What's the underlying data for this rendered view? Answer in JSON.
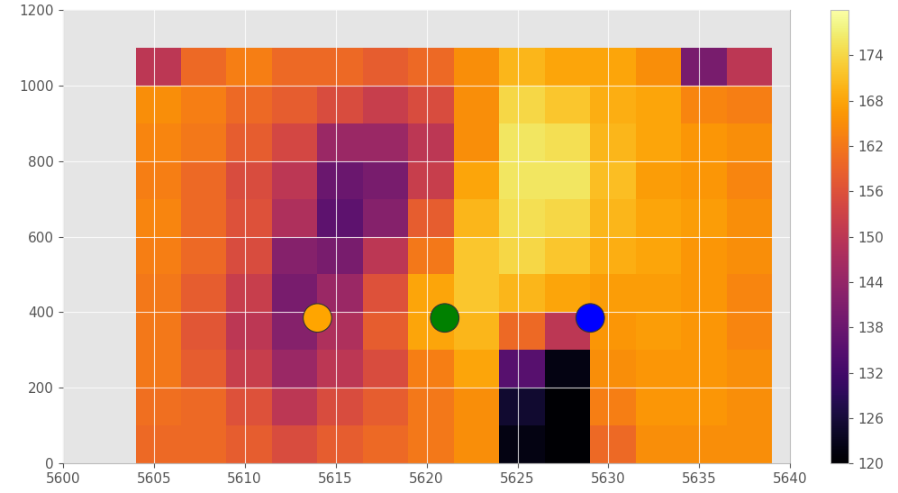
{
  "chart_data": {
    "type": "heatmap",
    "x_edges": [
      5604,
      5606.5,
      5609,
      5611.5,
      5614,
      5616.5,
      5619,
      5621.5,
      5624,
      5626.5,
      5629,
      5631.5,
      5634,
      5636.5,
      5639
    ],
    "y_edges": [
      0,
      100,
      200,
      300,
      400,
      500,
      600,
      700,
      800,
      900,
      1000,
      1100
    ],
    "cells": [
      [
        160,
        160,
        158,
        155,
        158,
        160,
        162,
        165,
        122,
        120,
        160,
        165,
        165,
        165
      ],
      [
        161,
        160,
        156,
        150,
        155,
        158,
        162,
        165,
        125,
        120,
        163,
        166,
        166,
        165
      ],
      [
        162,
        158,
        152,
        145,
        150,
        155,
        163,
        168,
        135,
        122,
        165,
        166,
        166,
        165
      ],
      [
        162,
        157,
        150,
        142,
        148,
        158,
        168,
        170,
        160,
        150,
        166,
        167,
        166,
        164
      ],
      [
        162,
        158,
        152,
        140,
        145,
        156,
        168,
        172,
        170,
        168,
        167,
        167,
        166,
        164
      ],
      [
        163,
        160,
        155,
        142,
        140,
        150,
        162,
        172,
        174,
        172,
        169,
        168,
        166,
        165
      ],
      [
        164,
        160,
        156,
        148,
        136,
        142,
        158,
        170,
        175,
        174,
        170,
        168,
        167,
        165
      ],
      [
        163,
        160,
        155,
        150,
        138,
        140,
        152,
        168,
        176,
        176,
        171,
        167,
        166,
        164
      ],
      [
        164,
        162,
        158,
        154,
        145,
        145,
        150,
        165,
        176,
        175,
        170,
        168,
        166,
        165
      ],
      [
        165,
        163,
        160,
        158,
        155,
        152,
        155,
        165,
        174,
        172,
        169,
        168,
        164,
        163
      ],
      [
        150,
        160,
        163,
        160,
        160,
        158,
        160,
        165,
        170,
        168,
        168,
        165,
        140,
        150
      ]
    ],
    "color_range": [
      120,
      180
    ],
    "color_ticks": [
      120,
      126,
      132,
      138,
      144,
      150,
      156,
      162,
      168,
      174
    ],
    "markers": {
      "x": [
        5614,
        5621,
        5629
      ],
      "y": [
        385,
        385,
        385
      ],
      "colors": [
        "#ffa500",
        "#008000",
        "#0000ff"
      ]
    },
    "xlim": [
      5600,
      5640
    ],
    "xticks": [
      5600,
      5605,
      5610,
      5615,
      5620,
      5625,
      5630,
      5635,
      5640
    ],
    "ylim": [
      0,
      1200
    ],
    "yticks": [
      0,
      200,
      400,
      600,
      800,
      1000,
      1200
    ],
    "grid": true
  }
}
